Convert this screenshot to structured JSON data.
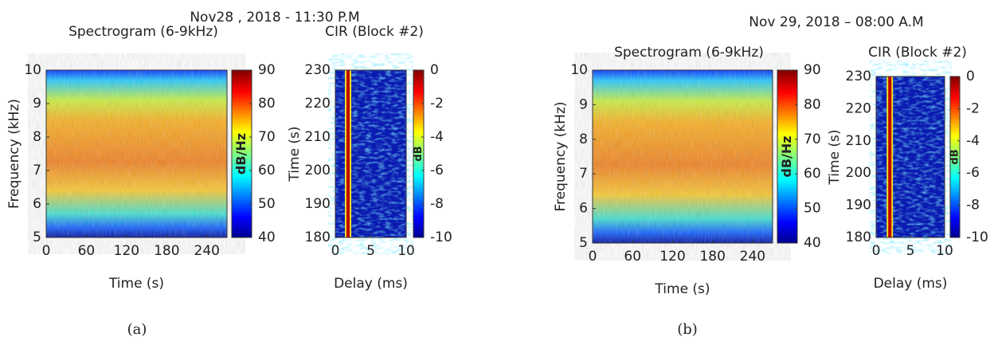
{
  "panels": [
    {
      "title": "Nov28 , 2018 - 11:30 P.M",
      "caption": "(a)",
      "spectrogram": {
        "title": "Spectrogram (6-9kHz)",
        "xlabel": "Time (s)",
        "ylabel": "Frequency (kHz)",
        "xlim": [
          0,
          270
        ],
        "xticks": [
          0,
          60,
          120,
          180,
          240
        ],
        "ylim": [
          5,
          10
        ],
        "yticks": [
          5,
          6,
          7,
          8,
          9,
          10
        ],
        "colorbar_label": "dB/Hz",
        "clim": [
          40,
          90
        ],
        "cticks": [
          40,
          50,
          60,
          70,
          80,
          90
        ]
      },
      "cir": {
        "title": "CIR (Block #2)",
        "xlabel": "Delay (ms)",
        "ylabel": "Time (s)",
        "xlim": [
          0,
          10
        ],
        "xticks": [
          0,
          5,
          10
        ],
        "ylim": [
          180,
          230
        ],
        "yticks": [
          180,
          190,
          200,
          210,
          220,
          230
        ],
        "colorbar_label": "dB",
        "clim": [
          -10,
          0
        ],
        "cticks": [
          -10,
          -8,
          -6,
          -4,
          -2,
          0
        ]
      }
    },
    {
      "title": "Nov 29, 2018 – 08:00 A.M",
      "caption": "(b)",
      "spectrogram": {
        "title": "Spectrogram (6-9kHz)",
        "xlabel": "Time (s)",
        "ylabel": "Frequency (kHz)",
        "xlim": [
          0,
          270
        ],
        "xticks": [
          0,
          60,
          120,
          180,
          240
        ],
        "ylim": [
          5,
          10
        ],
        "yticks": [
          5,
          6,
          7,
          8,
          9,
          10
        ],
        "colorbar_label": "dB/Hz",
        "clim": [
          40,
          90
        ],
        "cticks": [
          40,
          50,
          60,
          70,
          80,
          90
        ]
      },
      "cir": {
        "title": "CIR (Block #2)",
        "xlabel": "Delay (ms)",
        "ylabel": "Time (s)",
        "xlim": [
          0,
          10
        ],
        "xticks": [
          0,
          5,
          10
        ],
        "ylim": [
          180,
          230
        ],
        "yticks": [
          180,
          190,
          200,
          210,
          220,
          230
        ],
        "colorbar_label": "dB",
        "clim": [
          -10,
          0
        ],
        "cticks": [
          -10,
          -8,
          -6,
          -4,
          -2,
          0
        ]
      }
    }
  ]
}
